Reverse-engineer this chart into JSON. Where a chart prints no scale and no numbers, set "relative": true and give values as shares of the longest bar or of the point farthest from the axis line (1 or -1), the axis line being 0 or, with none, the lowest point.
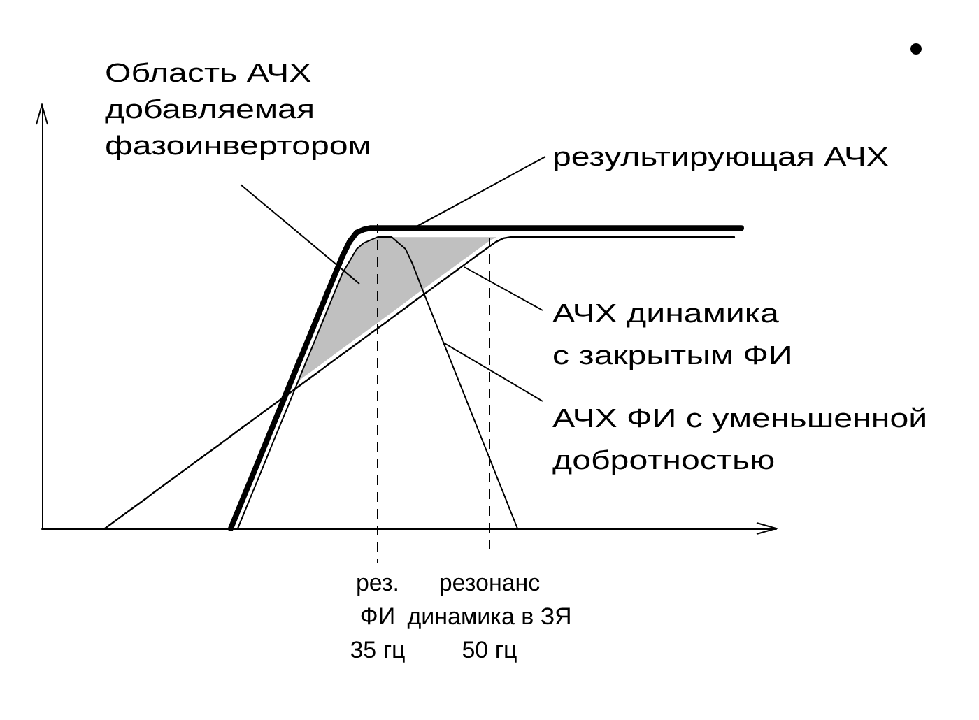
{
  "chart_data": {
    "type": "line",
    "relative": true,
    "tick_labels": "x",
    "marker": "none",
    "categories": [
      null,
      null,
      null,
      null,
      null,
      null,
      null,
      null,
      null,
      null,
      null,
      null,
      null,
      null,
      null,
      null,
      null,
      null,
      null,
      null,
      null,
      null,
      null,
      null,
      null,
      null,
      null,
      null,
      null,
      null,
      null,
      null,
      null,
      null,
      null,
      null,
      null,
      null,
      null,
      null,
      null,
      null,
      null,
      null,
      null,
      null,
      null,
      null,
      "рез.\nФИ\n35 гц",
      null,
      null,
      null,
      null,
      null,
      null,
      null,
      null,
      null,
      null,
      null,
      null,
      null,
      null,
      null,
      "резонанс\nдинамика в ЗЯ\n50 гц",
      null,
      null,
      null,
      null,
      null,
      null,
      null,
      null,
      null,
      null,
      null,
      null,
      null,
      null,
      null,
      null,
      null,
      null,
      null,
      null,
      null,
      null,
      null,
      null,
      null,
      null,
      null,
      null,
      null,
      null,
      null,
      null,
      null,
      null,
      null,
      null,
      null,
      null,
      null,
      null,
      null
    ],
    "series": [
      {
        "color": "#000000",
        "values": [
          null,
          null,
          null,
          null,
          null,
          null,
          null,
          null,
          null,
          null,
          null,
          null,
          null,
          null,
          null,
          null,
          null,
          null,
          null,
          null,
          null,
          null,
          null,
          null,
          null,
          null,
          null,
          0,
          0.057,
          0.114,
          0.17,
          0.227,
          0.284,
          0.341,
          0.397,
          0.454,
          0.511,
          0.568,
          0.624,
          0.681,
          0.738,
          0.795,
          0.851,
          0.908,
          0.955,
          0.985,
          0.995,
          1,
          1,
          1,
          1,
          1,
          1,
          1,
          1,
          1,
          1,
          1,
          1,
          1,
          1,
          1,
          1,
          1,
          1,
          1,
          1,
          1,
          1,
          1,
          1,
          1,
          1,
          1,
          1,
          1,
          1,
          1,
          1,
          1,
          1,
          1,
          1,
          1,
          1,
          1,
          1,
          1,
          1,
          1,
          1,
          1,
          1,
          1,
          1,
          1,
          1,
          1,
          1,
          1,
          1,
          null,
          null,
          null,
          null,
          null
        ]
      },
      {
        "color": "#000000",
        "values": [
          null,
          null,
          null,
          null,
          null,
          null,
          null,
          null,
          null,
          0,
          0.017,
          0.034,
          0.051,
          0.068,
          0.085,
          0.102,
          0.12,
          0.137,
          0.154,
          0.171,
          0.188,
          0.205,
          0.222,
          0.239,
          0.256,
          0.273,
          0.29,
          0.307,
          0.325,
          0.342,
          0.359,
          0.376,
          0.393,
          0.41,
          0.427,
          0.444,
          0.461,
          0.478,
          0.495,
          0.512,
          0.529,
          0.547,
          0.564,
          0.581,
          0.598,
          0.615,
          0.632,
          0.649,
          0.666,
          0.683,
          0.7,
          0.717,
          0.734,
          0.752,
          0.769,
          0.786,
          0.803,
          0.82,
          0.837,
          0.854,
          0.871,
          0.888,
          0.905,
          0.922,
          0.939,
          0.955,
          0.966,
          0.97,
          0.97,
          0.97,
          0.97,
          0.97,
          0.97,
          0.97,
          0.97,
          0.97,
          0.97,
          0.97,
          0.97,
          0.97,
          0.97,
          0.97,
          0.97,
          0.97,
          0.97,
          0.97,
          0.97,
          0.97,
          0.97,
          0.97,
          0.97,
          0.97,
          0.97,
          0.97,
          0.97,
          0.97,
          0.97,
          0.97,
          0.97,
          0.97,
          null,
          null,
          null,
          null,
          null,
          null
        ]
      },
      {
        "color": "#000000",
        "values": [
          null,
          null,
          null,
          null,
          null,
          null,
          null,
          null,
          null,
          null,
          null,
          null,
          null,
          null,
          null,
          null,
          null,
          null,
          null,
          null,
          null,
          null,
          null,
          null,
          null,
          null,
          null,
          null,
          0,
          0.057,
          0.114,
          0.17,
          0.227,
          0.284,
          0.341,
          0.397,
          0.454,
          0.511,
          0.568,
          0.624,
          0.681,
          0.738,
          0.795,
          0.851,
          0.89,
          0.93,
          0.95,
          0.96,
          0.97,
          0.97,
          0.97,
          0.95,
          0.93,
          0.88,
          0.82,
          0.76,
          0.702,
          0.643,
          0.585,
          0.526,
          0.468,
          0.409,
          0.351,
          0.292,
          0.234,
          0.175,
          0.117,
          0.058,
          0,
          null,
          null,
          null,
          null,
          null,
          null,
          null,
          null,
          null,
          null,
          null,
          null,
          null,
          null,
          null,
          null,
          null,
          null,
          null,
          null,
          null,
          null,
          null,
          null,
          null,
          null,
          null,
          null,
          null,
          null,
          null,
          null,
          null,
          null,
          null,
          null,
          null
        ]
      }
    ],
    "ref_lines": [
      {
        "axis": "x",
        "value": "рез.\nФИ\n35 гц",
        "line_style": "dashed"
      },
      {
        "axis": "x",
        "value": "резонанс\nдинамика в ЗЯ\n50 гц",
        "line_style": "dashed"
      }
    ],
    "annotations": [
      "Область АЧХ\nдобавляемая\nфазоинвертором",
      "результирующая АЧХ",
      "АЧХ динамика\nс закрытым ФИ",
      "АЧХ ФИ с уменьшенной\nдобротностью"
    ]
  }
}
